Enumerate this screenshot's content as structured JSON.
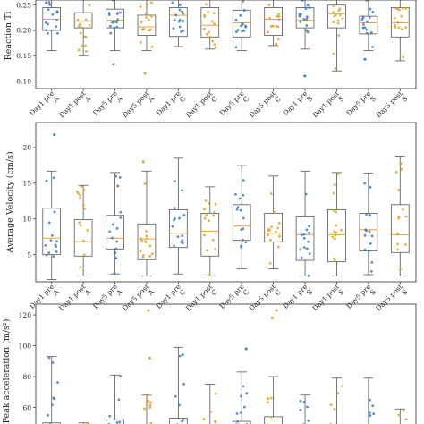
{
  "colors": {
    "blue": "#3b7bbf",
    "orange": "#d9a632",
    "median": "#e8a33a",
    "frame": "#444444",
    "box": "#555555"
  },
  "chart_data": [
    {
      "type": "box",
      "ylabel": "Reaction Ti",
      "ylim": [
        0.085,
        0.26
      ],
      "yticks": [
        0.1,
        0.15,
        0.2,
        0.25
      ],
      "ytick_labels": [
        "0.10",
        "0.15",
        "0.20",
        "0.25"
      ],
      "grid": false,
      "categories": [
        "Day1 pre\nA",
        "Day1 post\nA",
        "Day5 pre\nA",
        "Day5 post\nA",
        "Day1 pre\nC",
        "Day1 post\nC",
        "Day5 pre\nC",
        "Day5 post\nC",
        "Day1 pre\nS",
        "Day1 post\nS",
        "Day5 pre\nS",
        "Day5 post\nS"
      ],
      "boxes": [
        {
          "whislo": 0.16,
          "q1": 0.2,
          "med": 0.222,
          "q3": 0.245,
          "whishi": 0.262
        },
        {
          "whislo": 0.15,
          "q1": 0.205,
          "med": 0.218,
          "q3": 0.235,
          "whishi": 0.262
        },
        {
          "whislo": 0.16,
          "q1": 0.205,
          "med": 0.22,
          "q3": 0.242,
          "whishi": 0.262
        },
        {
          "whislo": 0.16,
          "q1": 0.19,
          "med": 0.207,
          "q3": 0.23,
          "whishi": 0.262
        },
        {
          "whislo": 0.168,
          "q1": 0.188,
          "med": 0.23,
          "q3": 0.245,
          "whishi": 0.262
        },
        {
          "whislo": 0.163,
          "q1": 0.187,
          "med": 0.21,
          "q3": 0.245,
          "whishi": 0.262
        },
        {
          "whislo": 0.16,
          "q1": 0.187,
          "med": 0.215,
          "q3": 0.24,
          "whishi": 0.262
        },
        {
          "whislo": 0.17,
          "q1": 0.19,
          "med": 0.222,
          "q3": 0.245,
          "whishi": 0.262
        },
        {
          "whislo": 0.163,
          "q1": 0.205,
          "med": 0.22,
          "q3": 0.245,
          "whishi": 0.262
        },
        {
          "whislo": 0.12,
          "q1": 0.205,
          "med": 0.233,
          "q3": 0.25,
          "whishi": 0.262
        },
        {
          "whislo": 0.16,
          "q1": 0.193,
          "med": 0.215,
          "q3": 0.228,
          "whishi": 0.262
        },
        {
          "whislo": 0.14,
          "q1": 0.187,
          "med": 0.215,
          "q3": 0.245,
          "whishi": 0.262
        }
      ],
      "outliers": [
        [],
        [],
        [
          0.133
        ],
        [
          0.115
        ],
        [],
        [],
        [],
        [],
        [
          0.11
        ],
        [],
        [
          0.143
        ],
        []
      ]
    },
    {
      "type": "box",
      "ylabel": "Average Velocity (cm/s)",
      "ylim": [
        1.2,
        23.5
      ],
      "yticks": [
        5,
        10,
        15,
        20
      ],
      "ytick_labels": [
        "5",
        "10",
        "15",
        "20"
      ],
      "grid": false,
      "categories": [
        "Day1 pre\nA",
        "Day1 post\nA",
        "Day5 pre\nA",
        "Day5 post\nA",
        "Day1 pre\nC",
        "Day1 post\nC",
        "Day5 pre\nC",
        "Day5 post\nC",
        "Day1 pre\nS",
        "Day1 post\nS",
        "Day5 pre\nS",
        "Day5 post\nS"
      ],
      "boxes": [
        {
          "whislo": 1.5,
          "q1": 5.0,
          "med": 7.3,
          "q3": 11.5,
          "whishi": 16.7
        },
        {
          "whislo": 2.0,
          "q1": 4.8,
          "med": 6.8,
          "q3": 9.9,
          "whishi": 14.7
        },
        {
          "whislo": 2.3,
          "q1": 5.8,
          "med": 7.3,
          "q3": 10.5,
          "whishi": 16.5
        },
        {
          "whislo": 2.0,
          "q1": 4.3,
          "med": 7.2,
          "q3": 9.3,
          "whishi": 16.7
        },
        {
          "whislo": 2.3,
          "q1": 6.0,
          "med": 8.0,
          "q3": 11.3,
          "whishi": 18.5
        },
        {
          "whislo": 2.0,
          "q1": 4.8,
          "med": 8.3,
          "q3": 10.8,
          "whishi": 14.5
        },
        {
          "whislo": 3.0,
          "q1": 7.0,
          "med": 9.0,
          "q3": 12.0,
          "whishi": 17.5
        },
        {
          "whislo": 3.0,
          "q1": 6.8,
          "med": 8.0,
          "q3": 10.8,
          "whishi": 16.0
        },
        {
          "whislo": 2.0,
          "q1": 4.2,
          "med": 7.8,
          "q3": 10.3,
          "whishi": 16.7
        },
        {
          "whislo": 2.0,
          "q1": 4.0,
          "med": 7.8,
          "q3": 11.3,
          "whishi": 16.5
        },
        {
          "whislo": 2.2,
          "q1": 5.5,
          "med": 8.5,
          "q3": 10.8,
          "whishi": 16.4
        },
        {
          "whislo": 2.0,
          "q1": 5.3,
          "med": 7.8,
          "q3": 12.0,
          "whishi": 18.8
        }
      ],
      "outliers": [
        [
          21.8
        ],
        [],
        [],
        [
          18.0
        ],
        [],
        [],
        [],
        [],
        [],
        [],
        [],
        []
      ]
    },
    {
      "type": "box",
      "ylabel": "Peak acceleration (m/s²)",
      "ylim": [
        40,
        127
      ],
      "yticks": [
        60,
        80,
        100,
        120
      ],
      "ytick_labels": [
        "60",
        "80",
        "100",
        "120"
      ],
      "grid": false,
      "categories": [
        "Day1 pre\nA",
        "Day1 post\nA",
        "Day5 pre\nA",
        "Day5 post\nA",
        "Day1 pre\nC",
        "Day1 post\nC",
        "Day5 pre\nC",
        "Day5 post\nC",
        "Day1 pre\nS",
        "Day1 post\nS",
        "Day5 pre\nS",
        "Day5 post\nS"
      ],
      "boxes": [
        {
          "whislo": 38,
          "q1": 38,
          "med": 45,
          "q3": 50,
          "whishi": 93
        },
        {
          "whislo": 38,
          "q1": 38,
          "med": 43,
          "q3": 44,
          "whishi": 50
        },
        {
          "whislo": 38,
          "q1": 38,
          "med": 45,
          "q3": 52,
          "whishi": 81
        },
        {
          "whislo": 38,
          "q1": 38,
          "med": 44,
          "q3": 49,
          "whishi": 68
        },
        {
          "whislo": 38,
          "q1": 38,
          "med": 45,
          "q3": 53,
          "whishi": 99
        },
        {
          "whislo": 38,
          "q1": 38,
          "med": 44,
          "q3": 47,
          "whishi": 75
        },
        {
          "whislo": 38,
          "q1": 38,
          "med": 45,
          "q3": 51,
          "whishi": 83
        },
        {
          "whislo": 38,
          "q1": 38,
          "med": 45,
          "q3": 54,
          "whishi": 80
        },
        {
          "whislo": 38,
          "q1": 38,
          "med": 44,
          "q3": 48,
          "whishi": 68
        },
        {
          "whislo": 38,
          "q1": 38,
          "med": 45,
          "q3": 49,
          "whishi": 79
        },
        {
          "whislo": 38,
          "q1": 38,
          "med": 44,
          "q3": 46,
          "whishi": 79
        },
        {
          "whislo": 38,
          "q1": 38,
          "med": 44,
          "q3": 48,
          "whishi": 59
        }
      ],
      "outliers": [
        [],
        [],
        [],
        [
          123,
          92
        ],
        [],
        [],
        [
          98
        ],
        [
          123,
          118
        ],
        [],
        [],
        [],
        []
      ]
    }
  ]
}
